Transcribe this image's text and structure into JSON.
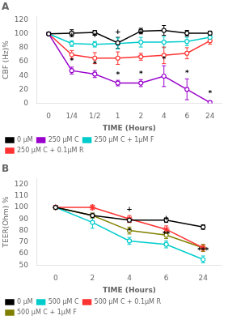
{
  "chart_data": [
    {
      "type": "line",
      "title": "A",
      "x_label": "TIME (Hours)",
      "y_label": "CBF (Hz)%",
      "categories": [
        "0",
        "1/4",
        "1/2",
        "1",
        "2",
        "4",
        "6",
        "24"
      ],
      "ylim": [
        0,
        125
      ],
      "yticks": [
        0,
        20,
        40,
        60,
        80,
        100,
        120
      ],
      "grid": false,
      "legend": "lower left",
      "series": [
        {
          "name": "0 μM",
          "color": "black",
          "marker": "circle",
          "values": [
            100,
            101,
            102,
            87,
            104,
            105,
            101,
            101
          ],
          "yerr": [
            2,
            5,
            3,
            8,
            4,
            7,
            4,
            3
          ]
        },
        {
          "name": "250 μM C",
          "color": "#9900CC",
          "marker": "circle",
          "values": [
            100,
            47,
            42,
            29,
            29,
            39,
            20,
            1
          ],
          "yerr": [
            2,
            5,
            5,
            4,
            5,
            15,
            15,
            1
          ]
        },
        {
          "name": "250 μM C + 1μM F",
          "color": "#00CCCC",
          "marker": "circle",
          "values": [
            100,
            86,
            85,
            86,
            88,
            88,
            89,
            95
          ],
          "yerr": [
            2,
            4,
            4,
            8,
            7,
            8,
            6,
            5
          ]
        },
        {
          "name": "250 μM C + 0.1μM R",
          "color": "#FF3333",
          "marker": "circle",
          "values": [
            100,
            70,
            65,
            65,
            67,
            69,
            72,
            90
          ],
          "yerr": [
            2,
            6,
            8,
            9,
            5,
            12,
            8,
            5
          ]
        }
      ],
      "annotations": [
        {
          "text": "+",
          "x": "1/4",
          "y": 93,
          "color": "black"
        },
        {
          "text": "+",
          "x": "1/2",
          "y": 92,
          "color": "black"
        },
        {
          "text": "+",
          "x": "1",
          "y": 97,
          "color": "black"
        },
        {
          "text": "+",
          "x": "2",
          "y": 97,
          "color": "black"
        },
        {
          "text": "*",
          "x": "1/4",
          "y": 55,
          "color": "black"
        },
        {
          "text": "*",
          "x": "1/2",
          "y": 50,
          "color": "black"
        },
        {
          "text": "*",
          "x": "1",
          "y": 35,
          "color": "black"
        },
        {
          "text": "*",
          "x": "2",
          "y": 36,
          "color": "black"
        },
        {
          "text": "*",
          "x": "4",
          "y": 57,
          "color": "black"
        },
        {
          "text": "*",
          "x": "6",
          "y": 38,
          "color": "black"
        },
        {
          "text": "*",
          "x": "24",
          "y": 8,
          "color": "black"
        }
      ]
    },
    {
      "type": "line",
      "title": "B",
      "x_label": "TIME (Hours)",
      "y_label": "TEER(Ohm) %",
      "categories": [
        "0",
        "2",
        "4",
        "6",
        "24"
      ],
      "ylim": [
        50,
        125
      ],
      "yticks": [
        50,
        60,
        70,
        80,
        90,
        100,
        110,
        120
      ],
      "grid": false,
      "legend": "lower left",
      "series": [
        {
          "name": "0 μM",
          "color": "black",
          "marker": "circle",
          "values": [
            100,
            93,
            89,
            89,
            83
          ],
          "yerr": [
            1,
            2,
            2,
            2,
            2
          ]
        },
        {
          "name": "500 μM C",
          "color": "#00CCCC",
          "marker": "circle",
          "values": [
            100,
            87,
            71,
            68,
            55
          ],
          "yerr": [
            1,
            5,
            3,
            3,
            3
          ]
        },
        {
          "name": "500 μM C + 0.1μM R",
          "color": "#FF3333",
          "marker": "star",
          "values": [
            100,
            100,
            90,
            81,
            65
          ],
          "yerr": [
            1,
            2,
            3,
            3,
            3
          ]
        },
        {
          "name": "500 μM C + 1μM F",
          "color": "#808000",
          "marker": "circle",
          "values": [
            100,
            93,
            80,
            76,
            65
          ],
          "yerr": [
            1,
            2,
            3,
            3,
            3
          ]
        }
      ],
      "annotations": [
        {
          "text": "+",
          "x": "4",
          "y": 95,
          "color": "black"
        },
        {
          "text": "+",
          "x": "6",
          "y": 87,
          "color": "black"
        },
        {
          "text": "*",
          "x": "4",
          "y": 76,
          "color": "black"
        },
        {
          "text": "**",
          "x": "6",
          "y": 73,
          "color": "black"
        },
        {
          "text": "***",
          "x": "24",
          "y": 59,
          "color": "black"
        }
      ]
    }
  ]
}
